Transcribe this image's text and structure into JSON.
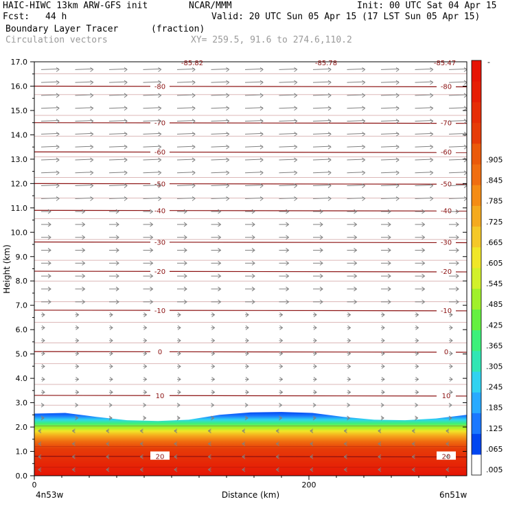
{
  "header": {
    "model": "HAIC-HIWC 13km ARW-GFS init",
    "org": "NCAR/MMM",
    "init": "Init: 00 UTC Sat 04 Apr 15",
    "fcst_label": "Fcst:",
    "fcst_value": "44 h",
    "valid": "Valid: 20 UTC Sun 05 Apr 15 (17 LST Sun 05 Apr 15)",
    "field": "Boundary Layer Tracer",
    "units": "(fraction)",
    "vectors": "Circulation vectors",
    "xy": "XY= 259.5, 91.6 to 274.6,110.2"
  },
  "chart_data": {
    "type": "heatmap",
    "title": "Boundary Layer Tracer (fraction)",
    "xlabel": "Distance (km)",
    "ylabel": "Height (km)",
    "xlim": [
      0,
      315
    ],
    "ylim": [
      0,
      17
    ],
    "x_ticks": [
      0,
      200
    ],
    "y_ticks": [
      "0.0",
      "1.0",
      "2.0",
      "3.0",
      "4.0",
      "5.0",
      "6.0",
      "7.0",
      "8.0",
      "9.0",
      "10.0",
      "11.0",
      "12.0",
      "13.0",
      "14.0",
      "15.0",
      "16.0",
      "17.0"
    ],
    "x_endpoints": [
      "4n53w",
      "6n51w"
    ],
    "colorbar_labels": [
      ".005",
      ".065",
      ".125",
      ".185",
      ".245",
      ".305",
      ".365",
      ".425",
      ".485",
      ".545",
      ".605",
      ".665",
      ".725",
      ".785",
      ".845",
      ".905"
    ],
    "colorbar_colors": [
      "#ffffff",
      "#0046f0",
      "#1a78ff",
      "#28aaff",
      "#30d2f0",
      "#30e6b4",
      "#3cf07a",
      "#64f040",
      "#a0f02a",
      "#d2f02a",
      "#f0e628",
      "#f5c828",
      "#f5aa1e",
      "#f58c14",
      "#f06e10",
      "#eb5a0a",
      "#e63c08",
      "#e62d06",
      "#e61e05",
      "#e61405"
    ],
    "tracer_top_km": [
      2.55,
      2.58,
      2.42,
      2.28,
      2.25,
      2.3,
      2.5,
      2.6,
      2.62,
      2.58,
      2.42,
      2.3,
      2.28,
      2.35,
      2.5
    ],
    "temperature_contours_C": [
      {
        "value": "-80",
        "height_km": 16.0
      },
      {
        "value": "-70",
        "height_km": 14.5
      },
      {
        "value": "-60",
        "height_km": 13.3
      },
      {
        "value": "-50",
        "height_km": 12.0
      },
      {
        "value": "-40",
        "height_km": 10.9
      },
      {
        "value": "-30",
        "height_km": 9.6
      },
      {
        "value": "-20",
        "height_km": 8.4
      },
      {
        "value": "-10",
        "height_km": 6.8
      },
      {
        "value": "0",
        "height_km": 5.1
      },
      {
        "value": "10",
        "height_km": 3.3
      },
      {
        "value": "20",
        "height_km": 0.8
      }
    ],
    "top_labels": [
      "-85.82",
      "-85.78",
      "-85.47"
    ],
    "colors": {
      "contour": "#8b1010",
      "vector": "#808080"
    }
  }
}
